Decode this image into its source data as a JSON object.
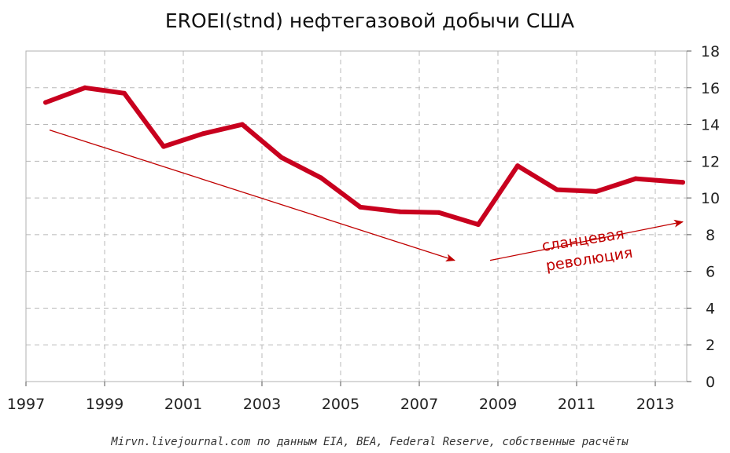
{
  "chart_data": {
    "type": "line",
    "title": "EROEI(stnd) нефтегазовой добычи США",
    "x_tick_labels": [
      "1997",
      "1999",
      "2001",
      "2003",
      "2005",
      "2007",
      "2009",
      "2011",
      "2013"
    ],
    "y_tick_labels": [
      "0",
      "2",
      "4",
      "6",
      "8",
      "10",
      "12",
      "14",
      "16",
      "18"
    ],
    "ylim": [
      0,
      18
    ],
    "xlim": [
      1997,
      2014
    ],
    "y_axis_side": "right",
    "grid": "dashed horizontal and vertical",
    "line_color": "#c8001e",
    "series": [
      {
        "x": [
          1997.5,
          1998.5,
          1999.5,
          2000.5,
          2001.5,
          2002.5,
          2003.5,
          2004.5,
          2005.5,
          2006.5,
          2007.5,
          2008.5,
          2009.5,
          2010.5,
          2011.5,
          2012.5,
          2013.7
        ],
        "values": [
          15.2,
          16.0,
          15.7,
          12.8,
          13.5,
          14.0,
          12.2,
          11.1,
          9.5,
          9.25,
          9.2,
          8.55,
          11.75,
          10.45,
          10.35,
          11.05,
          10.85
        ]
      }
    ],
    "annotations": {
      "text_line1": "сланцевая",
      "text_line2": "революция",
      "arrow_down": {
        "from": [
          1997.6,
          13.7
        ],
        "to": [
          2007.9,
          6.6
        ]
      },
      "arrow_up": {
        "from": [
          2008.8,
          6.6
        ],
        "to": [
          2013.7,
          8.7
        ]
      }
    },
    "source": "Mirvn.livejournal.com по данным EIA, BEA, Federal Reserve, собственные расчёты"
  }
}
